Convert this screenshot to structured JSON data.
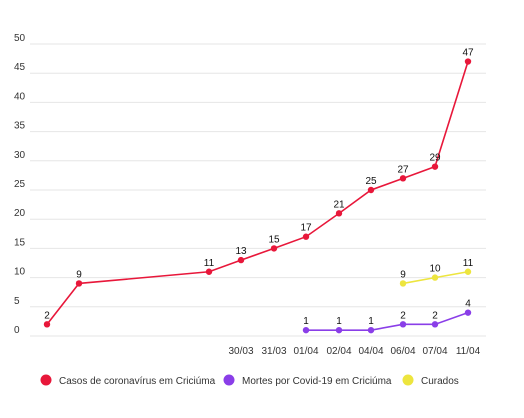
{
  "chart_data": {
    "type": "line",
    "title": "",
    "xlabel": "",
    "ylabel": "",
    "ylim": [
      0,
      50
    ],
    "yticks": [
      0,
      5,
      10,
      15,
      20,
      25,
      30,
      35,
      40,
      45,
      50
    ],
    "grid": true,
    "legend_position": "bottom",
    "x": [
      "",
      "",
      "",
      "30/03",
      "31/03",
      "01/04",
      "02/04",
      "04/04",
      "06/04",
      "07/04",
      "11/04"
    ],
    "series": [
      {
        "name": "Casos de coronavírus em Criciúma",
        "color": "#e8173a",
        "values": [
          2,
          9,
          11,
          13,
          15,
          17,
          21,
          25,
          27,
          29,
          47
        ]
      },
      {
        "name": "Mortes por Covid-19 em Criciúma",
        "color": "#8a3ee8",
        "values": [
          null,
          null,
          null,
          null,
          null,
          1,
          1,
          1,
          2,
          2,
          4
        ]
      },
      {
        "name": "Curados",
        "color": "#ede53e",
        "values": [
          null,
          null,
          null,
          null,
          null,
          null,
          null,
          null,
          9,
          10,
          11
        ]
      }
    ]
  }
}
